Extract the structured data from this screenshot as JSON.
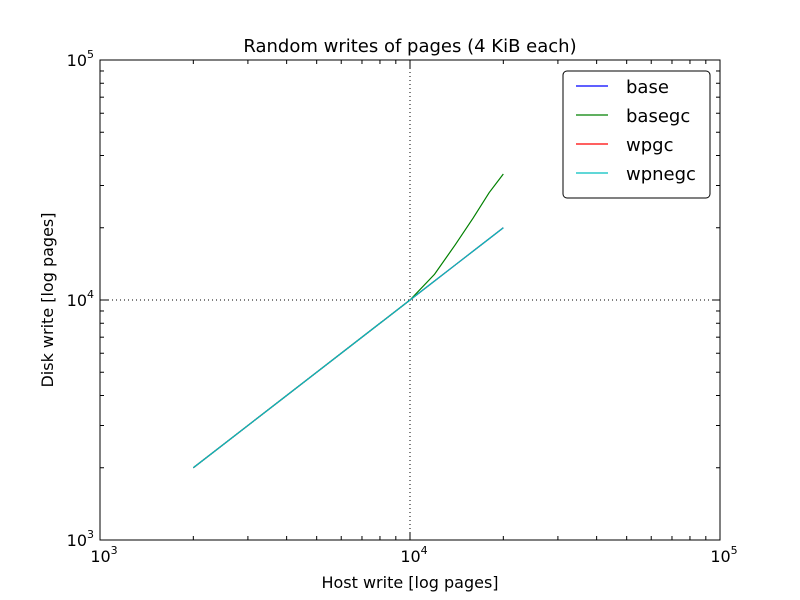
{
  "chart_data": {
    "type": "line",
    "title": "Random writes of pages (4 KiB each)",
    "xlabel": "Host write [log pages]",
    "ylabel": "Disk write [log pages]",
    "xscale": "log",
    "yscale": "log",
    "xlim": [
      1000,
      100000
    ],
    "ylim": [
      1000,
      100000
    ],
    "x_ticks": [
      {
        "value": 1000,
        "base": "10",
        "exp": "3"
      },
      {
        "value": 10000,
        "base": "10",
        "exp": "4"
      },
      {
        "value": 100000,
        "base": "10",
        "exp": "5"
      }
    ],
    "y_ticks": [
      {
        "value": 1000,
        "base": "10",
        "exp": "3"
      },
      {
        "value": 10000,
        "base": "10",
        "exp": "4"
      },
      {
        "value": 100000,
        "base": "10",
        "exp": "5"
      }
    ],
    "grid": "major dotted",
    "legend_position": "top-right",
    "series": [
      {
        "name": "base",
        "color": "#0000ff",
        "x": [
          2000,
          4000,
          6000,
          8000,
          10000,
          12000,
          14000,
          16000,
          18000,
          20000
        ],
        "y": [
          2000,
          4000,
          6000,
          8000,
          10000,
          12000,
          14000,
          16000,
          18000,
          20000
        ]
      },
      {
        "name": "basegc",
        "color": "#008000",
        "x": [
          2000,
          4000,
          6000,
          8000,
          10000,
          12000,
          14000,
          16000,
          18000,
          20000
        ],
        "y": [
          2000,
          4000,
          6000,
          8000,
          10000,
          12800,
          17000,
          22000,
          28000,
          33500
        ]
      },
      {
        "name": "wpgc",
        "color": "#ff0000",
        "x": [
          2000,
          4000,
          6000,
          8000,
          10000,
          12000,
          14000,
          16000,
          18000,
          20000
        ],
        "y": [
          2000,
          4000,
          6000,
          8000,
          10000,
          12000,
          14000,
          16000,
          18000,
          20000
        ]
      },
      {
        "name": "wpnegc",
        "color": "#00bfbf",
        "x": [
          2000,
          4000,
          6000,
          8000,
          10000,
          12000,
          14000,
          16000,
          18000,
          20000
        ],
        "y": [
          2000,
          4000,
          6000,
          8000,
          10000,
          12000,
          14000,
          16000,
          18000,
          20000
        ]
      }
    ]
  }
}
